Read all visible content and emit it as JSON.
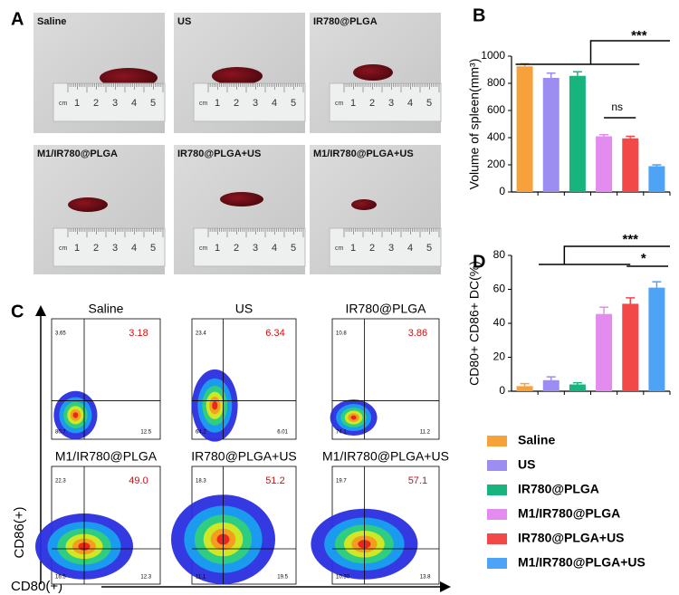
{
  "panel_labels": [
    "A",
    "B",
    "C",
    "D"
  ],
  "photos": {
    "groups": [
      "Saline",
      "US",
      "IR780@PLGA",
      "M1/IR780@PLGA",
      "IR780@PLGA+US",
      "M1/IR780@PLGA+US"
    ],
    "ruler_unit": "cm",
    "ruler_numbers": [
      1,
      2,
      3,
      4,
      5
    ]
  },
  "flow": {
    "x_axis_label": "CD80(+)",
    "y_axis_label": "CD86(+)",
    "plots": [
      {
        "title": "Saline",
        "q1": "3.65",
        "q2": "3.18",
        "q3": "12.5",
        "q4": "80.7"
      },
      {
        "title": "US",
        "q1": "23.4",
        "q2": "6.34",
        "q3": "6.01",
        "q4": "64.2"
      },
      {
        "title": "IR780@PLGA",
        "q1": "10.8",
        "q2": "3.86",
        "q3": "11.2",
        "q4": "74.1"
      },
      {
        "title": "M1/IR780@PLGA",
        "q1": "22.3",
        "q2": "49.0",
        "q3": "12.3",
        "q4": "16.5"
      },
      {
        "title": "IR780@PLGA+US",
        "q1": "18.3",
        "q2": "51.2",
        "q3": "19.5",
        "q4": "11.1"
      },
      {
        "title": "M1/IR780@PLGA+US",
        "q1": "19.7",
        "q2": "57.1",
        "q3": "13.8",
        "q4": "10.30"
      }
    ]
  },
  "chart_data": [
    {
      "type": "bar",
      "y_axis_label": "Volume of spleen(mm³)",
      "categories": [
        "Saline",
        "US",
        "IR780@PLGA",
        "M1/IR780@PLGA",
        "IR780@PLGA+US",
        "M1/IR780@PLGA+US"
      ],
      "colors": [
        "#f7a13b",
        "#9b8ef0",
        "#17b57d",
        "#e38bef",
        "#f24848",
        "#4da3f5"
      ],
      "values": [
        925,
        840,
        855,
        410,
        395,
        190
      ],
      "errors": [
        20,
        35,
        30,
        12,
        15,
        10
      ],
      "ylim": [
        0,
        1000
      ],
      "yticks": [
        0,
        200,
        400,
        600,
        800,
        1000
      ],
      "annotations": [
        "***",
        "ns"
      ]
    },
    {
      "type": "bar",
      "y_axis_label": "CD80+ CD86+ DC(%)",
      "values": [
        3,
        6.5,
        4,
        45.5,
        51.5,
        61
      ],
      "errors": [
        1.5,
        2,
        1,
        4,
        3.5,
        3.5
      ],
      "ylim": [
        0,
        80
      ],
      "yticks": [
        0,
        20,
        40,
        60,
        80
      ],
      "annotations": [
        "***",
        "*"
      ]
    }
  ]
}
